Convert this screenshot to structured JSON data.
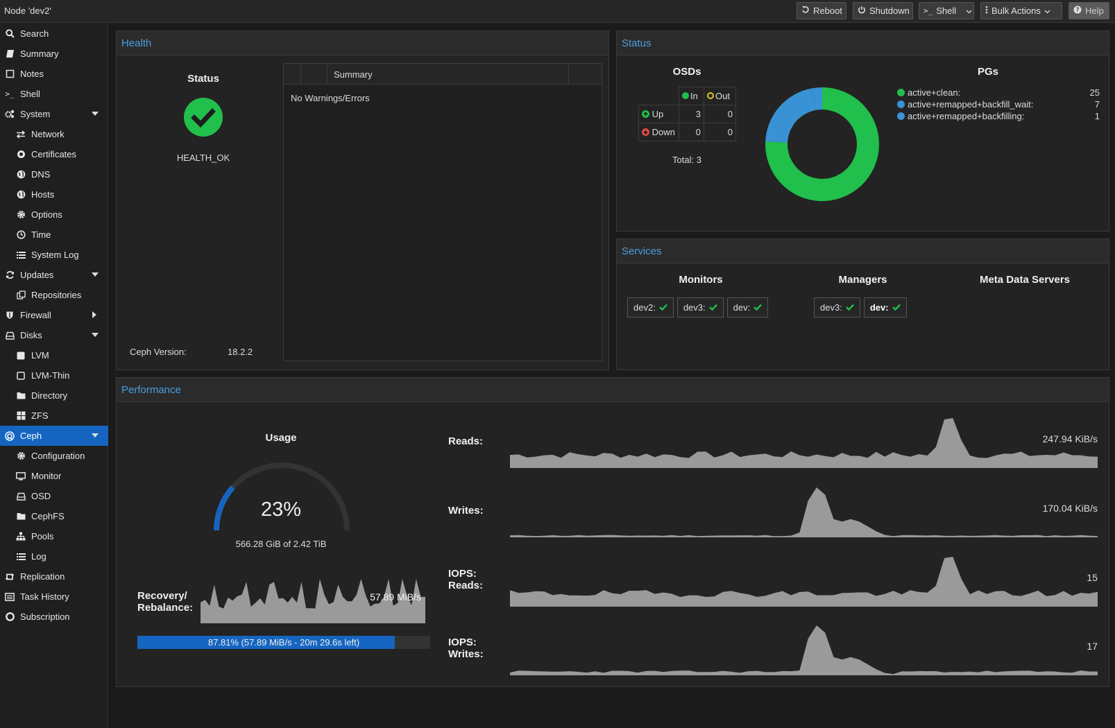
{
  "topbar": {
    "title": "Node 'dev2'",
    "reboot": "Reboot",
    "shutdown": "Shutdown",
    "shell": "Shell",
    "bulk_actions": "Bulk Actions",
    "help": "Help"
  },
  "sidebar": {
    "items": [
      {
        "label": "Search",
        "icon": "search-icon"
      },
      {
        "label": "Summary",
        "icon": "book-icon"
      },
      {
        "label": "Notes",
        "icon": "note-icon"
      },
      {
        "label": "Shell",
        "icon": "terminal-icon"
      },
      {
        "label": "System",
        "icon": "gears-icon"
      },
      {
        "label": "Network",
        "icon": "exchange-icon"
      },
      {
        "label": "Certificates",
        "icon": "certificate-icon"
      },
      {
        "label": "DNS",
        "icon": "globe-icon"
      },
      {
        "label": "Hosts",
        "icon": "globe-icon"
      },
      {
        "label": "Options",
        "icon": "gear-icon"
      },
      {
        "label": "Time",
        "icon": "clock-icon"
      },
      {
        "label": "System Log",
        "icon": "list-icon"
      },
      {
        "label": "Updates",
        "icon": "refresh-icon"
      },
      {
        "label": "Repositories",
        "icon": "files-icon"
      },
      {
        "label": "Firewall",
        "icon": "shield-icon"
      },
      {
        "label": "Disks",
        "icon": "hdd-icon"
      },
      {
        "label": "LVM",
        "icon": "square-icon"
      },
      {
        "label": "LVM-Thin",
        "icon": "square-outline-icon"
      },
      {
        "label": "Directory",
        "icon": "folder-icon"
      },
      {
        "label": "ZFS",
        "icon": "grid-icon"
      },
      {
        "label": "Ceph",
        "icon": "ceph-icon"
      },
      {
        "label": "Configuration",
        "icon": "gear-icon"
      },
      {
        "label": "Monitor",
        "icon": "desktop-icon"
      },
      {
        "label": "OSD",
        "icon": "hdd-icon"
      },
      {
        "label": "CephFS",
        "icon": "folder-icon"
      },
      {
        "label": "Pools",
        "icon": "sitemap-icon"
      },
      {
        "label": "Log",
        "icon": "list-icon"
      },
      {
        "label": "Replication",
        "icon": "retweet-icon"
      },
      {
        "label": "Task History",
        "icon": "list-alt-icon"
      },
      {
        "label": "Subscription",
        "icon": "support-icon"
      }
    ]
  },
  "health": {
    "header": "Health",
    "status_title": "Status",
    "status_value": "HEALTH_OK",
    "ceph_version_label": "Ceph Version:",
    "ceph_version_value": "18.2.2",
    "summary_header": "Summary",
    "summary_text": "No Warnings/Errors"
  },
  "status": {
    "header": "Status",
    "osds_title": "OSDs",
    "col_in": "In",
    "col_out": "Out",
    "row_up": "Up",
    "row_down": "Down",
    "up_in": "3",
    "up_out": "0",
    "down_in": "0",
    "down_out": "0",
    "total": "Total: 3",
    "pgs_title": "PGs",
    "pgs": [
      {
        "label": "active+clean:",
        "value": "25",
        "color": "#21bf4b"
      },
      {
        "label": "active+remapped+backfill_wait:",
        "value": "7",
        "color": "#3892d4"
      },
      {
        "label": "active+remapped+backfilling:",
        "value": "1",
        "color": "#3892d4"
      }
    ]
  },
  "services": {
    "header": "Services",
    "monitors_title": "Monitors",
    "managers_title": "Managers",
    "mds_title": "Meta Data Servers",
    "monitors": [
      "dev2:",
      "dev3:",
      "dev:"
    ],
    "managers": [
      "dev3:",
      "dev:"
    ]
  },
  "performance": {
    "header": "Performance",
    "usage_title": "Usage",
    "usage_percent_text": "23%",
    "usage_fraction": 0.23,
    "usage_detail": "566.28 GiB of 2.42 TiB",
    "recovery_label_1": "Recovery/",
    "recovery_label_2": "Rebalance:",
    "recovery_rate": "57.89 MiB/s",
    "progress_fraction": 0.8781,
    "progress_text": "87.81% (57.89 MiB/s - 20m 29.6s left)",
    "reads_label": "Reads:",
    "reads_value": "247.94 KiB/s",
    "writes_label": "Writes:",
    "writes_value": "170.04 KiB/s",
    "iops_reads_label_1": "IOPS:",
    "iops_reads_label_2": "Reads:",
    "iops_reads_value": "15",
    "iops_writes_label_1": "IOPS:",
    "iops_writes_label_2": "Writes:",
    "iops_writes_value": "17"
  }
}
